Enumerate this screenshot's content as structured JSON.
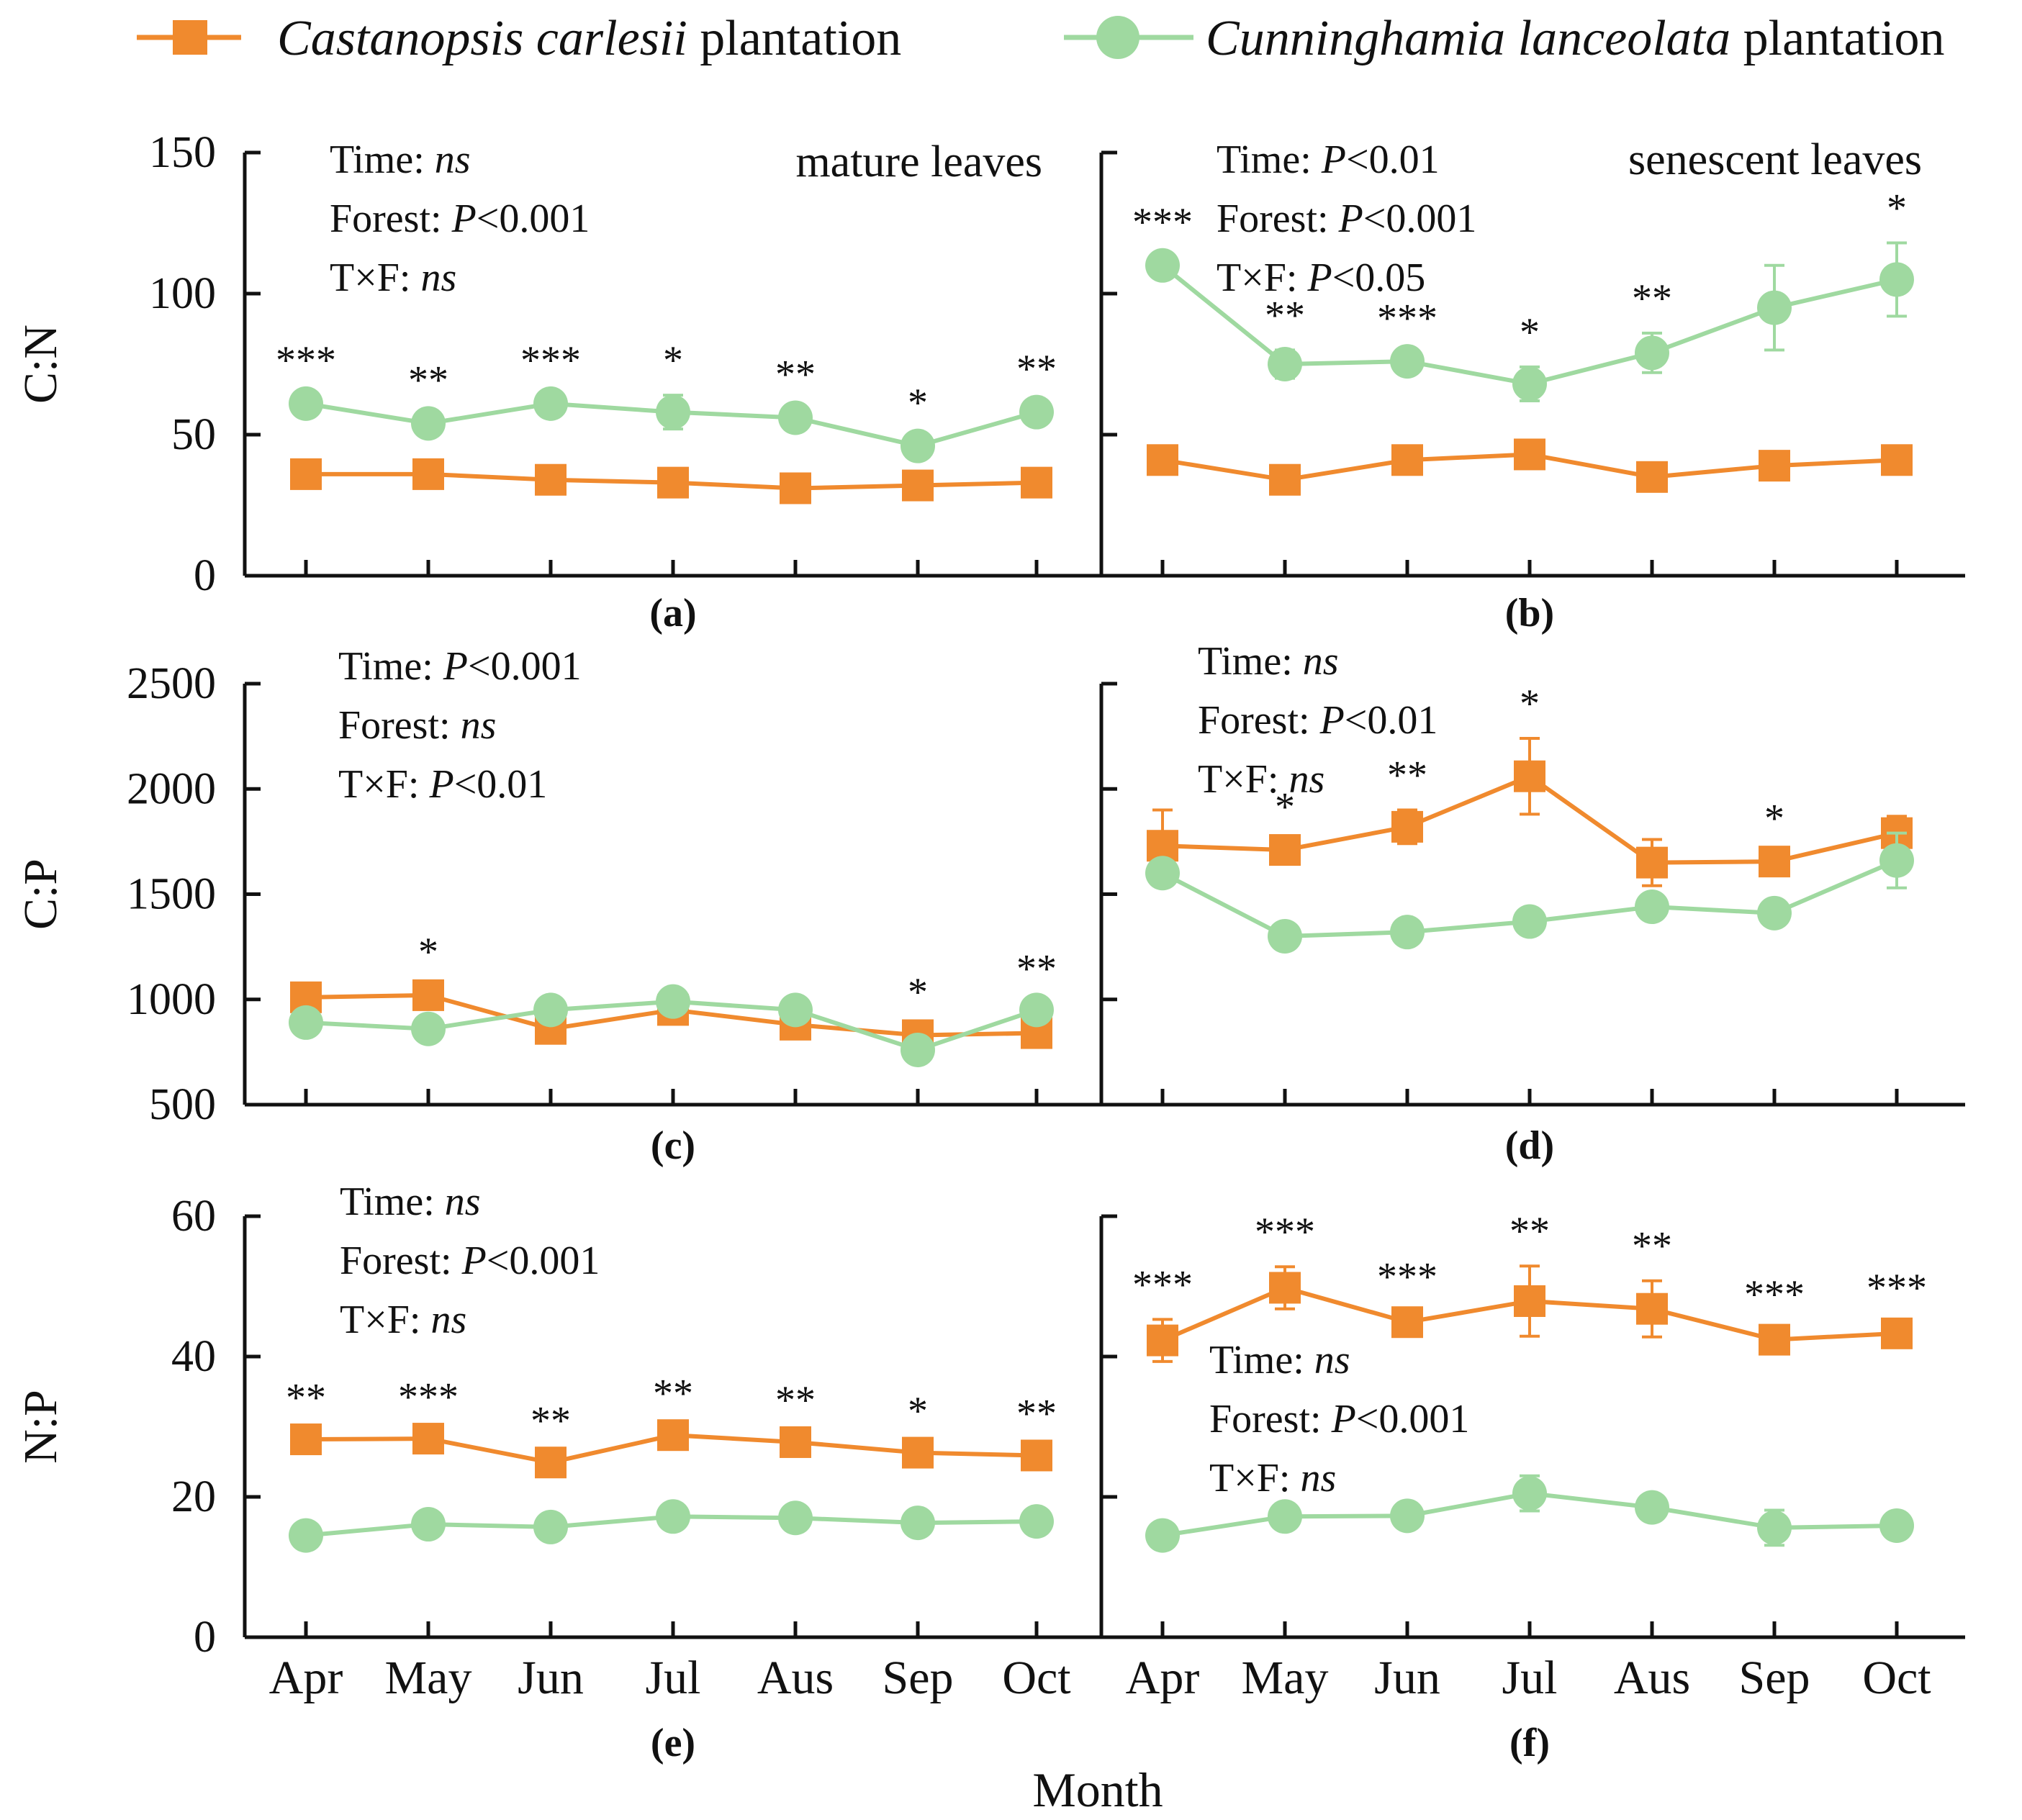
{
  "colors": {
    "castanopsis": "#F08A2E",
    "cunninghamia": "#9FD9A0",
    "axis": "#111111"
  },
  "legend": [
    {
      "species": "Castanopsis carlesii",
      "suffix": " plantation",
      "marker": "square",
      "color": "#F08A2E"
    },
    {
      "species": "Cunninghamia lanceolata",
      "suffix": " plantation",
      "marker": "circle",
      "color": "#9FD9A0"
    }
  ],
  "xlabel": "Month",
  "chart_data": [
    {
      "id": "a",
      "panel_label": "(a)",
      "type": "line",
      "ylabel": "C:N",
      "leaf_type": "mature leaves",
      "categories": [
        "Apr",
        "May",
        "Jun",
        "Jul",
        "Aus",
        "Sep",
        "Oct"
      ],
      "ylim": [
        0,
        150
      ],
      "yticks": [
        0,
        50,
        100,
        150
      ],
      "stats": [
        {
          "name": "Time: ",
          "value": "ns",
          "italic_name": "",
          "op": ""
        },
        {
          "name": "Forest: ",
          "value": "<0.001",
          "italic_name": "P",
          "op": ""
        },
        {
          "name": "T×F: ",
          "value": "ns",
          "italic_name": "",
          "op": ""
        }
      ],
      "series": [
        {
          "name": "Castanopsis carlesii plantation",
          "values": [
            36,
            36,
            34,
            33,
            31,
            32,
            33
          ],
          "errors": [
            2,
            2,
            2,
            2,
            2,
            2,
            2
          ]
        },
        {
          "name": "Cunninghamia lanceolata plantation",
          "values": [
            61,
            54,
            61,
            58,
            56,
            46,
            58
          ],
          "errors": [
            3,
            3,
            3,
            6,
            3,
            3,
            3
          ]
        }
      ],
      "significance": [
        "***",
        "**",
        "***",
        "*",
        "**",
        "*",
        "**"
      ]
    },
    {
      "id": "b",
      "panel_label": "(b)",
      "type": "line",
      "ylabel": "",
      "leaf_type": "senescent leaves",
      "categories": [
        "Apr",
        "May",
        "Jun",
        "Jul",
        "Aus",
        "Sep",
        "Oct"
      ],
      "ylim": [
        0,
        150
      ],
      "yticks": [
        0,
        50,
        100,
        150
      ],
      "stats": [
        {
          "name": "Time: ",
          "value": "<0.01",
          "italic_name": "P",
          "op": ""
        },
        {
          "name": "Forest: ",
          "value": "<0.001",
          "italic_name": "P",
          "op": ""
        },
        {
          "name": "T×F: ",
          "value": "<0.05",
          "italic_name": "P",
          "op": ""
        }
      ],
      "series": [
        {
          "name": "Castanopsis carlesii plantation",
          "values": [
            41,
            34,
            41,
            43,
            35,
            39,
            41
          ],
          "errors": [
            3,
            3,
            3,
            4,
            3,
            3,
            3
          ]
        },
        {
          "name": "Cunninghamia lanceolata plantation",
          "values": [
            110,
            75,
            76,
            68,
            79,
            95,
            105
          ],
          "errors": [
            3,
            5,
            3,
            6,
            7,
            15,
            13
          ]
        }
      ],
      "significance": [
        "***",
        "**",
        "***",
        "*",
        "**",
        "",
        "*"
      ]
    },
    {
      "id": "c",
      "panel_label": "(c)",
      "type": "line",
      "ylabel": "C:P",
      "leaf_type": "",
      "categories": [
        "Apr",
        "May",
        "Jun",
        "Jul",
        "Aus",
        "Sep",
        "Oct"
      ],
      "ylim": [
        500,
        2500
      ],
      "yticks": [
        500,
        1000,
        1500,
        2000,
        2500
      ],
      "stats": [
        {
          "name": "Time: ",
          "value": "<0.001",
          "italic_name": "P",
          "op": ""
        },
        {
          "name": "Forest: ",
          "value": "ns",
          "italic_name": "",
          "op": ""
        },
        {
          "name": "T×F: ",
          "value": "<0.01",
          "italic_name": "P",
          "op": ""
        }
      ],
      "series": [
        {
          "name": "Castanopsis carlesii plantation",
          "values": [
            1010,
            1020,
            860,
            950,
            880,
            830,
            840
          ],
          "errors": [
            40,
            40,
            40,
            50,
            40,
            40,
            40
          ]
        },
        {
          "name": "Cunninghamia lanceolata plantation",
          "values": [
            890,
            860,
            950,
            990,
            950,
            760,
            950
          ],
          "errors": [
            30,
            30,
            40,
            40,
            30,
            30,
            30
          ]
        }
      ],
      "significance": [
        "",
        "*",
        "",
        "",
        "",
        "*",
        "**"
      ]
    },
    {
      "id": "d",
      "panel_label": "(d)",
      "type": "line",
      "ylabel": "",
      "leaf_type": "",
      "categories": [
        "Apr",
        "May",
        "Jun",
        "Jul",
        "Aus",
        "Sep",
        "Oct"
      ],
      "ylim": [
        500,
        2500
      ],
      "yticks": [
        500,
        1000,
        1500,
        2000,
        2500
      ],
      "stats": [
        {
          "name": "Time: ",
          "value": "ns",
          "italic_name": "",
          "op": ""
        },
        {
          "name": "Forest: ",
          "value": "<0.01",
          "italic_name": "P",
          "op": ""
        },
        {
          "name": "T×F: ",
          "value": "ns",
          "italic_name": "",
          "op": ""
        }
      ],
      "series": [
        {
          "name": "Castanopsis carlesii plantation",
          "values": [
            1730,
            1710,
            1820,
            2060,
            1650,
            1655,
            1790
          ],
          "errors": [
            170,
            40,
            80,
            180,
            110,
            40,
            80
          ]
        },
        {
          "name": "Cunninghamia lanceolata plantation",
          "values": [
            1600,
            1300,
            1320,
            1370,
            1440,
            1410,
            1660
          ],
          "errors": [
            40,
            60,
            40,
            60,
            50,
            40,
            130
          ]
        }
      ],
      "significance": [
        "",
        "*",
        "**",
        "*",
        "",
        "*",
        ""
      ]
    },
    {
      "id": "e",
      "panel_label": "(e)",
      "type": "line",
      "ylabel": "N:P",
      "leaf_type": "",
      "categories": [
        "Apr",
        "May",
        "Jun",
        "Jul",
        "Aus",
        "Sep",
        "Oct"
      ],
      "ylim": [
        0,
        60
      ],
      "yticks": [
        0,
        20,
        40,
        60
      ],
      "stats": [
        {
          "name": "Time: ",
          "value": "ns",
          "italic_name": "",
          "op": ""
        },
        {
          "name": "Forest: ",
          "value": "<0.001",
          "italic_name": "P",
          "op": ""
        },
        {
          "name": "T×F: ",
          "value": "ns",
          "italic_name": "",
          "op": ""
        }
      ],
      "series": [
        {
          "name": "Castanopsis carlesii plantation",
          "values": [
            28.2,
            28.3,
            24.9,
            28.8,
            27.8,
            26.3,
            25.9
          ],
          "errors": [
            1,
            1,
            1,
            1,
            1,
            1,
            1
          ]
        },
        {
          "name": "Cunninghamia lanceolata plantation",
          "values": [
            14.5,
            16.1,
            15.7,
            17.2,
            17.0,
            16.3,
            16.5
          ],
          "errors": [
            0.8,
            0.8,
            0.8,
            1.2,
            0.8,
            0.8,
            0.8
          ]
        }
      ],
      "significance": [
        "**",
        "***",
        "**",
        "**",
        "**",
        "*",
        "**"
      ]
    },
    {
      "id": "f",
      "panel_label": "(f)",
      "type": "line",
      "ylabel": "",
      "leaf_type": "",
      "categories": [
        "Apr",
        "May",
        "Jun",
        "Jul",
        "Aus",
        "Sep",
        "Oct"
      ],
      "ylim": [
        0,
        60
      ],
      "yticks": [
        0,
        20,
        40,
        60
      ],
      "stats": [
        {
          "name": "Time: ",
          "value": "ns",
          "italic_name": "",
          "op": ""
        },
        {
          "name": "Forest: ",
          "value": "<0.001",
          "italic_name": "P",
          "op": ""
        },
        {
          "name": "T×F: ",
          "value": "ns",
          "italic_name": "",
          "op": ""
        }
      ],
      "series": [
        {
          "name": "Castanopsis carlesii plantation",
          "values": [
            42.3,
            49.8,
            44.9,
            47.9,
            46.8,
            42.4,
            43.3
          ],
          "errors": [
            3,
            3,
            1.5,
            5,
            4,
            1.5,
            1.5
          ]
        },
        {
          "name": "Cunninghamia lanceolata plantation",
          "values": [
            14.5,
            17.2,
            17.3,
            20.5,
            18.5,
            15.6,
            15.9
          ],
          "errors": [
            0.8,
            1,
            1,
            2.5,
            1,
            2.5,
            1
          ]
        }
      ],
      "significance": [
        "***",
        "***",
        "***",
        "**",
        "**",
        "***",
        "***"
      ]
    }
  ]
}
